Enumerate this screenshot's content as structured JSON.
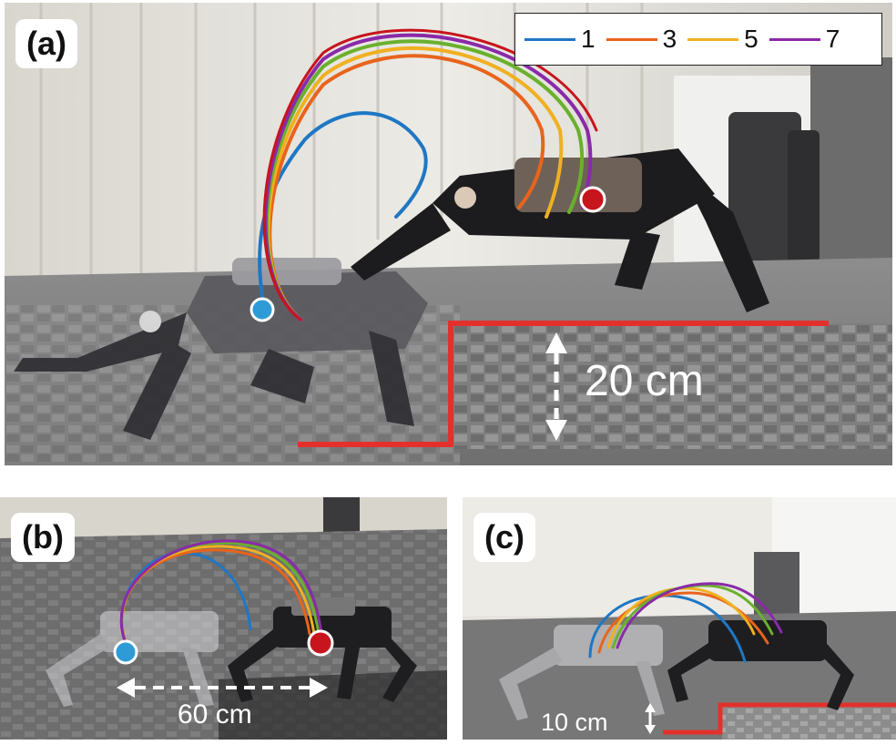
{
  "panels": {
    "a": {
      "label": "(a)",
      "height": "20 cm"
    },
    "b": {
      "label": "(b)",
      "distance": "60 cm"
    },
    "c": {
      "label": "(c)",
      "height": "10 cm"
    }
  },
  "legend": {
    "items": [
      {
        "label": "1",
        "color": "#1f77c4"
      },
      {
        "label": "3",
        "color": "#e8641c"
      },
      {
        "label": "5",
        "color": "#f0b020"
      },
      {
        "label": "7",
        "color": "#8a2aa8"
      }
    ]
  },
  "colors": {
    "start_marker": "#2e9bd6",
    "end_marker": "#c8141c",
    "step_outline": "#e4302c",
    "trajectory_green": "#6ab02e"
  }
}
